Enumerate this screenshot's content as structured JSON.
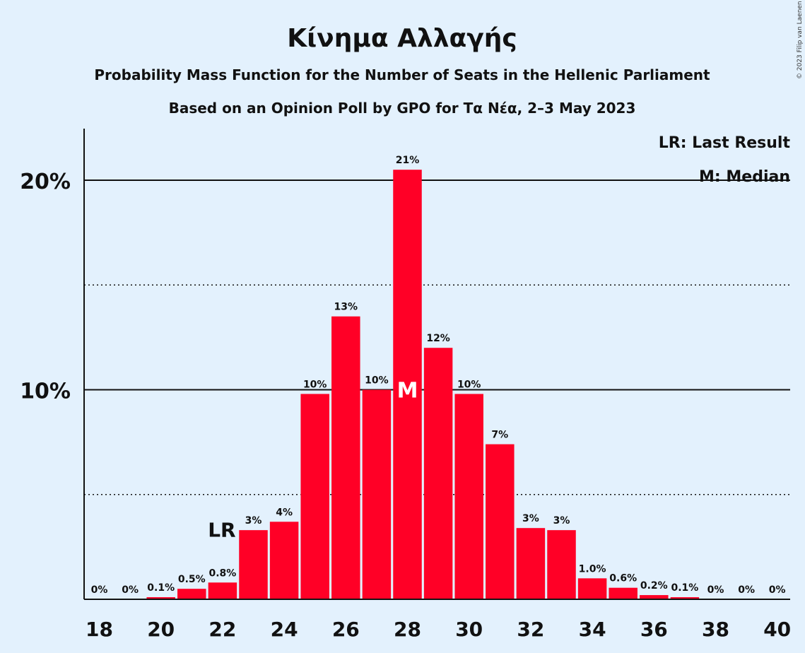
{
  "chart_data": {
    "type": "bar",
    "title": "Κίνημα Αλλαγής",
    "subtitle": "Probability Mass Function for the Number of Seats in the Hellenic Parliament",
    "subtitle2": "Based on an Opinion Poll by GPO for Τα Νέα, 2–3 May 2023",
    "copyright": "© 2023 Filip van Laenen",
    "legend": [
      "LR: Last Result",
      "M: Median"
    ],
    "legend_position": "top-right",
    "bar_color": "#ff0026",
    "x": [
      18,
      19,
      20,
      21,
      22,
      23,
      24,
      25,
      26,
      27,
      28,
      29,
      30,
      31,
      32,
      33,
      34,
      35,
      36,
      37,
      38,
      39,
      40
    ],
    "values": [
      0,
      0,
      0.1,
      0.5,
      0.8,
      3.3,
      3.7,
      9.8,
      13.5,
      10.0,
      20.5,
      12.0,
      9.8,
      7.4,
      3.4,
      3.3,
      1.0,
      0.55,
      0.2,
      0.1,
      0,
      0,
      0
    ],
    "labels": [
      "0%",
      "0%",
      "0.1%",
      "0.5%",
      "0.8%",
      "3%",
      "4%",
      "10%",
      "13%",
      "10%",
      "21%",
      "12%",
      "10%",
      "7%",
      "3%",
      "3%",
      "1.0%",
      "0.6%",
      "0.2%",
      "0.1%",
      "0%",
      "0%",
      "0%"
    ],
    "x_tick_labels": [
      "18",
      "20",
      "22",
      "24",
      "26",
      "28",
      "30",
      "32",
      "34",
      "36",
      "38",
      "40"
    ],
    "y_tick_labels": [
      "10%",
      "20%"
    ],
    "ylim": [
      0,
      22.5
    ],
    "solid_gridlines": [
      10,
      20
    ],
    "dotted_gridlines": [
      5,
      15
    ],
    "last_result": {
      "x": 22,
      "label": "LR"
    },
    "median": {
      "x": 28,
      "label": "M"
    }
  }
}
